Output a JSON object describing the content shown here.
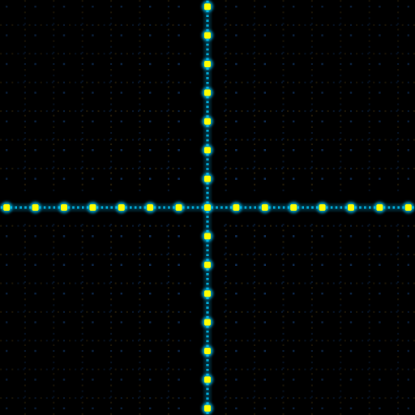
{
  "image": {
    "subject": "diffraction-grid-pattern",
    "background_color": "#000000",
    "palette": {
      "peak": "#ffff00",
      "halo": "#00c8ff",
      "fringe": "#1e5aa8",
      "warm_fringe": "#8a6a20"
    }
  }
}
